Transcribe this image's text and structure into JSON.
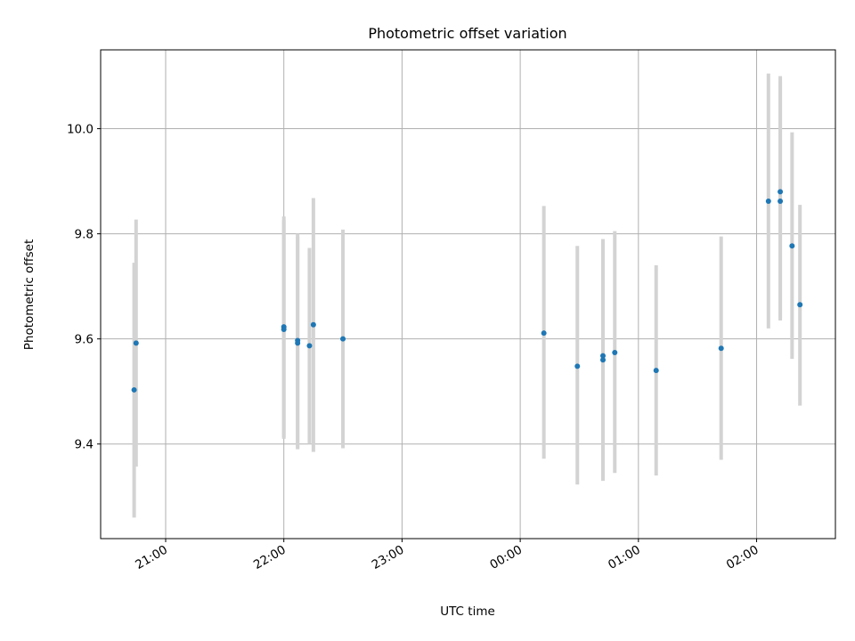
{
  "chart_data": {
    "type": "scatter",
    "title": "Photometric offset variation",
    "xlabel": "UTC time",
    "ylabel": "Photometric offset",
    "x_ticks": [
      "21:00",
      "22:00",
      "23:00",
      "00:00",
      "01:00",
      "02:00"
    ],
    "y_ticks": [
      "9.4",
      "9.6",
      "9.8",
      "10.0"
    ],
    "xlim": [
      "20:27",
      "02:40"
    ],
    "ylim": [
      9.22,
      10.15
    ],
    "grid": true,
    "colors": {
      "point": "#1f77b4",
      "errorbar": "#d3d3d3"
    },
    "series": [
      {
        "points": [
          {
            "x": "20:44",
            "y": 9.503,
            "lo": 9.26,
            "hi": 9.745
          },
          {
            "x": "20:45",
            "y": 9.592,
            "lo": 9.357,
            "hi": 9.827
          },
          {
            "x": "22:00",
            "y": 9.623,
            "lo": 9.413,
            "hi": 9.833
          },
          {
            "x": "22:00",
            "y": 9.618,
            "lo": 9.41,
            "hi": 9.826
          },
          {
            "x": "22:07",
            "y": 9.597,
            "lo": 9.392,
            "hi": 9.8
          },
          {
            "x": "22:07",
            "y": 9.592,
            "lo": 9.39,
            "hi": 9.795
          },
          {
            "x": "22:13",
            "y": 9.587,
            "lo": 9.4,
            "hi": 9.773
          },
          {
            "x": "22:15",
            "y": 9.627,
            "lo": 9.385,
            "hi": 9.868
          },
          {
            "x": "22:30",
            "y": 9.6,
            "lo": 9.392,
            "hi": 9.808
          },
          {
            "x": "00:12",
            "y": 9.611,
            "lo": 9.372,
            "hi": 9.853
          },
          {
            "x": "00:29",
            "y": 9.548,
            "lo": 9.323,
            "hi": 9.777
          },
          {
            "x": "00:42",
            "y": 9.568,
            "lo": 9.35,
            "hi": 9.788
          },
          {
            "x": "00:42",
            "y": 9.56,
            "lo": 9.33,
            "hi": 9.79
          },
          {
            "x": "00:48",
            "y": 9.574,
            "lo": 9.345,
            "hi": 9.805
          },
          {
            "x": "01:09",
            "y": 9.54,
            "lo": 9.34,
            "hi": 9.74
          },
          {
            "x": "01:42",
            "y": 9.582,
            "lo": 9.37,
            "hi": 9.795
          },
          {
            "x": "02:06",
            "y": 9.862,
            "lo": 9.62,
            "hi": 10.105
          },
          {
            "x": "02:12",
            "y": 9.88,
            "lo": 9.64,
            "hi": 10.1
          },
          {
            "x": "02:12",
            "y": 9.862,
            "lo": 9.635,
            "hi": 10.09
          },
          {
            "x": "02:18",
            "y": 9.777,
            "lo": 9.562,
            "hi": 9.993
          },
          {
            "x": "02:22",
            "y": 9.665,
            "lo": 9.473,
            "hi": 9.855
          }
        ]
      }
    ]
  }
}
